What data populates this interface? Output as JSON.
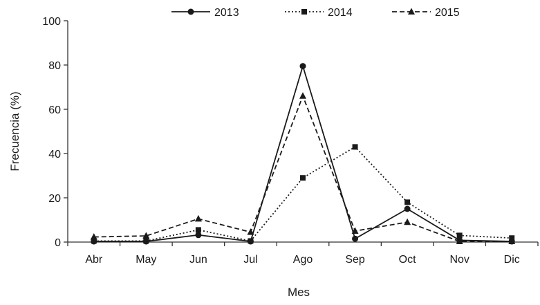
{
  "chart_data": {
    "type": "line",
    "title": "",
    "xlabel": "Mes",
    "ylabel": "Frecuencia (%)",
    "categories": [
      "Abr",
      "May",
      "Jun",
      "Jul",
      "Ago",
      "Sep",
      "Oct",
      "Nov",
      "Dic"
    ],
    "ylim": [
      0,
      100
    ],
    "yticks": [
      0,
      20,
      40,
      60,
      80,
      100
    ],
    "grid": false,
    "legend_position": "top",
    "series": [
      {
        "name": "2013",
        "line_style": "solid",
        "marker": "circle",
        "color": "#1a1a1a",
        "values": [
          0.3,
          0.3,
          3.2,
          0.3,
          79.5,
          1.5,
          15.0,
          0.8,
          0.3
        ]
      },
      {
        "name": "2014",
        "line_style": "dotted",
        "marker": "square",
        "color": "#1a1a1a",
        "values": [
          0.5,
          0.5,
          5.5,
          0.5,
          29.0,
          43.0,
          18.0,
          3.0,
          1.8
        ]
      },
      {
        "name": "2015",
        "line_style": "dashed",
        "marker": "triangle",
        "color": "#1a1a1a",
        "values": [
          2.3,
          2.8,
          10.5,
          4.5,
          66.0,
          5.0,
          9.0,
          0.3,
          0.3
        ]
      }
    ]
  }
}
